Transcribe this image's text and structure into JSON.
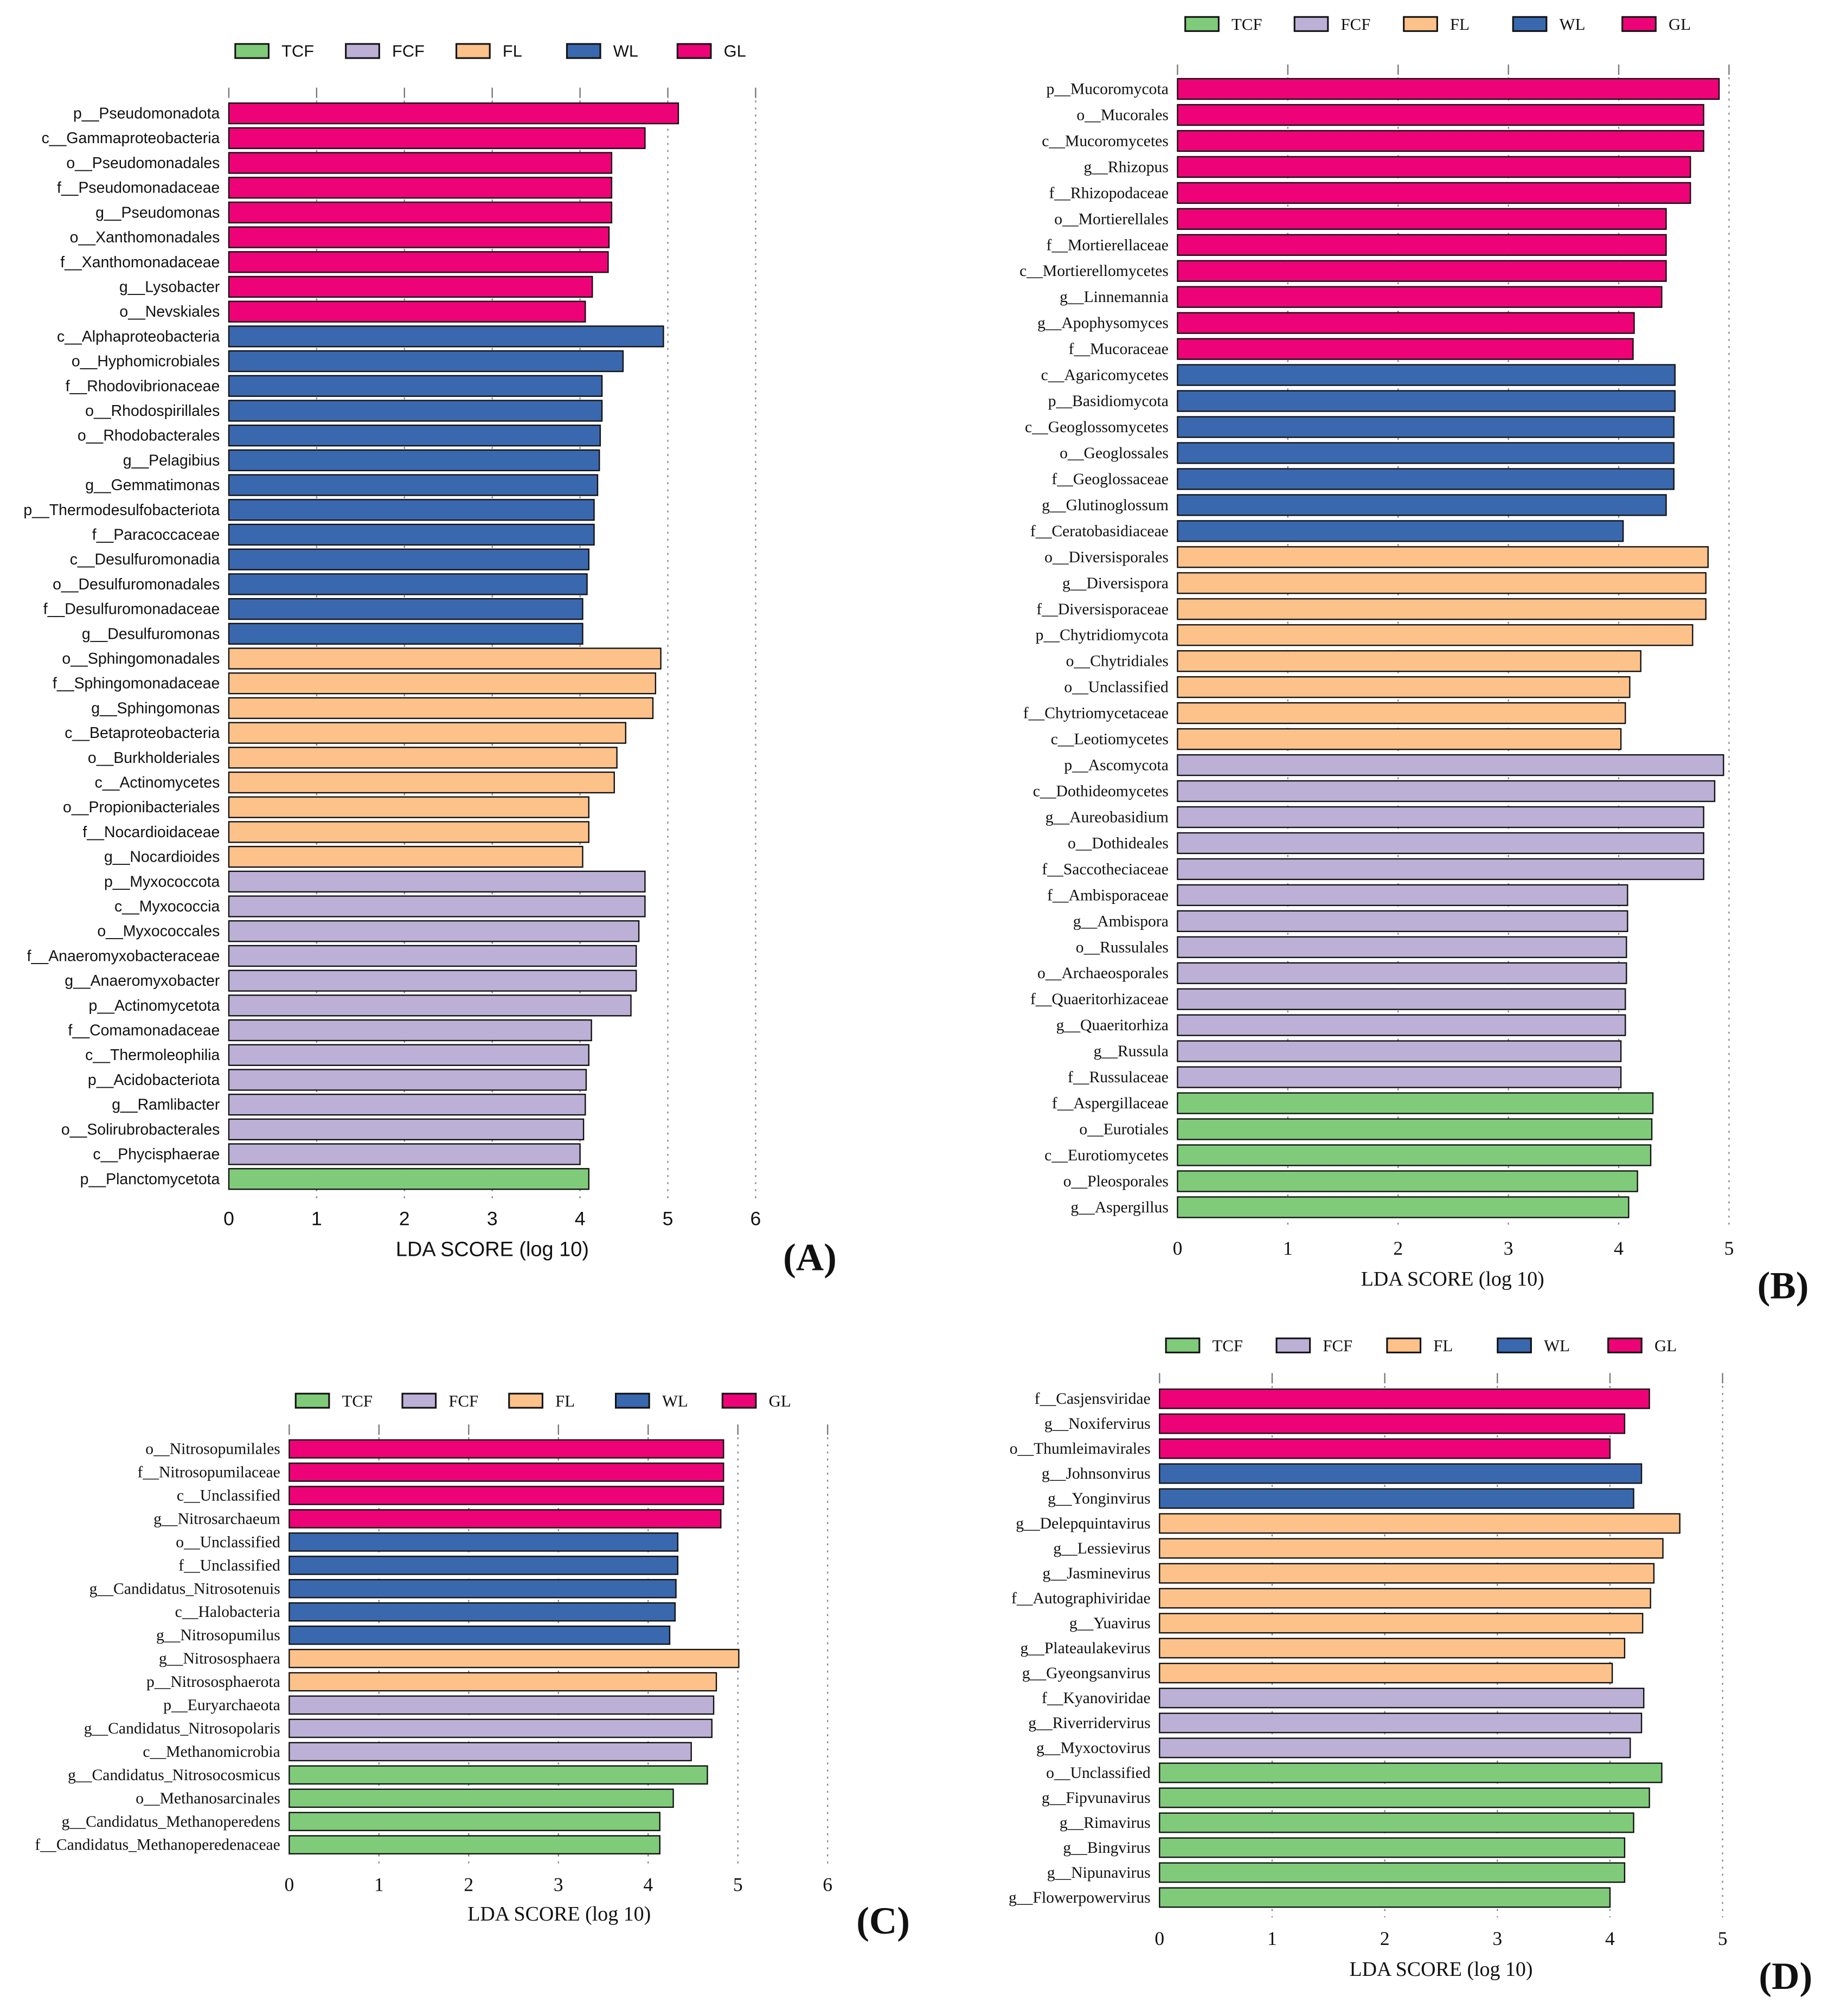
{
  "colors": {
    "TCF": "#7fcb7a",
    "FCF": "#bcb0d6",
    "FL": "#fdc18a",
    "WL": "#3a68ae",
    "GL": "#ee0277"
  },
  "chart_data": [
    {
      "type": "bar",
      "orientation": "horizontal",
      "panel_label": "(A)",
      "xlabel": "LDA SCORE (log 10)",
      "xlim": [
        0,
        6
      ],
      "ticks": [
        "0",
        "1",
        "2",
        "3",
        "4",
        "5",
        "6"
      ],
      "legend": [
        "TCF",
        "FCF",
        "FL",
        "WL",
        "GL"
      ],
      "labels": [
        "p__Pseudomonadota",
        "c__Gammaproteobacteria",
        "o__Pseudomonadales",
        "f__Pseudomonadaceae",
        "g__Pseudomonas",
        "o__Xanthomonadales",
        "f__Xanthomonadaceae",
        "g__Lysobacter",
        "o__Nevskiales",
        "c__Alphaproteobacteria",
        "o__Hyphomicrobiales",
        "f__Rhodovibrionaceae",
        "o__Rhodospirillales",
        "o__Rhodobacterales",
        "g__Pelagibius",
        "g__Gemmatimonas",
        "p__Thermodesulfobacteriota",
        "f__Paracoccaceae",
        "c__Desulfuromonadia",
        "o__Desulfuromonadales",
        "f__Desulfuromonadaceae",
        "g__Desulfuromonas",
        "o__Sphingomonadales",
        "f__Sphingomonadaceae",
        "g__Sphingomonas",
        "c__Betaproteobacteria",
        "o__Burkholderiales",
        "c__Actinomycetes",
        "o__Propionibacteriales",
        "f__Nocardioidaceae",
        "g__Nocardioides",
        "p__Myxococcota",
        "c__Myxococcia",
        "o__Myxococcales",
        "f__Anaeromyxobacteraceae",
        "g__Anaeromyxobacter",
        "p__Actinomycetota",
        "f__Comamonadaceae",
        "c__Thermoleophilia",
        "p__Acidobacteriota",
        "g__Ramlibacter",
        "o__Solirubrobacterales",
        "c__Phycisphaerae",
        "p__Planctomycetota"
      ],
      "values": [
        5.12,
        4.74,
        4.36,
        4.36,
        4.36,
        4.33,
        4.32,
        4.14,
        4.06,
        4.95,
        4.49,
        4.25,
        4.25,
        4.23,
        4.22,
        4.2,
        4.16,
        4.16,
        4.1,
        4.08,
        4.03,
        4.03,
        4.92,
        4.86,
        4.83,
        4.52,
        4.42,
        4.39,
        4.1,
        4.1,
        4.03,
        4.74,
        4.74,
        4.67,
        4.64,
        4.64,
        4.58,
        4.13,
        4.1,
        4.07,
        4.06,
        4.04,
        4.0,
        4.1
      ],
      "groups": [
        "GL",
        "GL",
        "GL",
        "GL",
        "GL",
        "GL",
        "GL",
        "GL",
        "GL",
        "WL",
        "WL",
        "WL",
        "WL",
        "WL",
        "WL",
        "WL",
        "WL",
        "WL",
        "WL",
        "WL",
        "WL",
        "WL",
        "FL",
        "FL",
        "FL",
        "FL",
        "FL",
        "FL",
        "FL",
        "FL",
        "FL",
        "FCF",
        "FCF",
        "FCF",
        "FCF",
        "FCF",
        "FCF",
        "FCF",
        "FCF",
        "FCF",
        "FCF",
        "FCF",
        "FCF",
        "TCF"
      ]
    },
    {
      "type": "bar",
      "orientation": "horizontal",
      "panel_label": "(B)",
      "xlabel": "LDA SCORE (log 10)",
      "xlim": [
        0,
        5
      ],
      "ticks": [
        "0",
        "1",
        "2",
        "3",
        "4",
        "5"
      ],
      "legend": [
        "TCF",
        "FCF",
        "FL",
        "WL",
        "GL"
      ],
      "labels": [
        "p__Mucoromycota",
        "o__Mucorales",
        "c__Mucoromycetes",
        "g__Rhizopus",
        "f__Rhizopodaceae",
        "o__Mortierellales",
        "f__Mortierellaceae",
        "c__Mortierellomycetes",
        "g__Linnemannia",
        "g__Apophysomyces",
        "f__Mucoraceae",
        "c__Agaricomycetes",
        "p__Basidiomycota",
        "c__Geoglossomycetes",
        "o__Geoglossales",
        "f__Geoglossaceae",
        "g__Glutinoglossum",
        "f__Ceratobasidiaceae",
        "o__Diversisporales",
        "g__Diversispora",
        "f__Diversisporaceae",
        "p__Chytridiomycota",
        "o__Chytridiales",
        "o__Unclassified",
        "f__Chytriomycetaceae",
        "c__Leotiomycetes",
        "p__Ascomycota",
        "c__Dothideomycetes",
        "g__Aureobasidium",
        "o__Dothideales",
        "f__Saccotheciaceae",
        "f__Ambisporaceae",
        "g__Ambispora",
        "o__Russulales",
        "o__Archaeosporales",
        "f__Quaeritorhizaceae",
        "g__Quaeritorhiza",
        "g__Russula",
        "f__Russulaceae",
        "f__Aspergillaceae",
        "o__Eurotiales",
        "c__Eurotiomycetes",
        "o__Pleosporales",
        "g__Aspergillus"
      ],
      "values": [
        4.91,
        4.77,
        4.77,
        4.65,
        4.65,
        4.43,
        4.43,
        4.43,
        4.39,
        4.14,
        4.13,
        4.51,
        4.51,
        4.5,
        4.5,
        4.5,
        4.43,
        4.04,
        4.81,
        4.79,
        4.79,
        4.67,
        4.2,
        4.1,
        4.06,
        4.02,
        4.95,
        4.87,
        4.77,
        4.77,
        4.77,
        4.08,
        4.08,
        4.07,
        4.07,
        4.06,
        4.06,
        4.02,
        4.02,
        4.31,
        4.3,
        4.29,
        4.17,
        4.09
      ],
      "groups": [
        "GL",
        "GL",
        "GL",
        "GL",
        "GL",
        "GL",
        "GL",
        "GL",
        "GL",
        "GL",
        "GL",
        "WL",
        "WL",
        "WL",
        "WL",
        "WL",
        "WL",
        "WL",
        "FL",
        "FL",
        "FL",
        "FL",
        "FL",
        "FL",
        "FL",
        "FL",
        "FCF",
        "FCF",
        "FCF",
        "FCF",
        "FCF",
        "FCF",
        "FCF",
        "FCF",
        "FCF",
        "FCF",
        "FCF",
        "FCF",
        "FCF",
        "TCF",
        "TCF",
        "TCF",
        "TCF",
        "TCF"
      ]
    },
    {
      "type": "bar",
      "orientation": "horizontal",
      "panel_label": "(C)",
      "xlabel": "LDA SCORE (log 10)",
      "xlim": [
        0,
        6
      ],
      "ticks": [
        "0",
        "1",
        "2",
        "3",
        "4",
        "5",
        "6"
      ],
      "legend": [
        "TCF",
        "FCF",
        "FL",
        "WL",
        "GL"
      ],
      "labels": [
        "o__Nitrosopumilales",
        "f__Nitrosopumilaceae",
        "c__Unclassified",
        "g__Nitrosarchaeum",
        "o__Unclassified",
        "f__Unclassified",
        "g__Candidatus_Nitrosotenuis",
        "c__Halobacteria",
        "g__Nitrosopumilus",
        "g__Nitrososphaera",
        "p__Nitrososphaerota",
        "p__Euryarchaeota",
        "g__Candidatus_Nitrosopolaris",
        "c__Methanomicrobia",
        "g__Candidatus_Nitrosocosmicus",
        "o__Methanosarcinales",
        "g__Candidatus_Methanoperedens",
        "f__Candidatus_Methanoperedenaceae"
      ],
      "values": [
        4.84,
        4.84,
        4.84,
        4.81,
        4.33,
        4.33,
        4.31,
        4.3,
        4.24,
        5.01,
        4.76,
        4.73,
        4.71,
        4.48,
        4.66,
        4.28,
        4.13,
        4.13
      ],
      "groups": [
        "GL",
        "GL",
        "GL",
        "GL",
        "WL",
        "WL",
        "WL",
        "WL",
        "WL",
        "FL",
        "FL",
        "FCF",
        "FCF",
        "FCF",
        "TCF",
        "TCF",
        "TCF",
        "TCF"
      ]
    },
    {
      "type": "bar",
      "orientation": "horizontal",
      "panel_label": "(D)",
      "xlabel": "LDA SCORE (log 10)",
      "xlim": [
        0,
        5
      ],
      "ticks": [
        "0",
        "1",
        "2",
        "3",
        "4",
        "5"
      ],
      "legend": [
        "TCF",
        "FCF",
        "FL",
        "WL",
        "GL"
      ],
      "labels": [
        "f__Casjensviridae",
        "g__Noxifervirus",
        "o__Thumleimavirales",
        "g__Johnsonvirus",
        "g__Yonginvirus",
        "g__Delepquintavirus",
        "g__Lessievirus",
        "g__Jasminevirus",
        "f__Autographiviridae",
        "g__Yuavirus",
        "g__Plateaulakevirus",
        "g__Gyeongsanvirus",
        "f__Kyanoviridae",
        "g__Riverridervirus",
        "g__Myxoctovirus",
        "o__Unclassified",
        "g__Fipvunavirus",
        "g__Rimavirus",
        "g__Bingvirus",
        "g__Nipunavirus",
        "g__Flowerpowervirus"
      ],
      "values": [
        4.35,
        4.13,
        4.0,
        4.28,
        4.21,
        4.62,
        4.47,
        4.39,
        4.36,
        4.29,
        4.13,
        4.02,
        4.3,
        4.28,
        4.18,
        4.46,
        4.35,
        4.21,
        4.13,
        4.13,
        4.0
      ],
      "groups": [
        "GL",
        "GL",
        "GL",
        "WL",
        "WL",
        "FL",
        "FL",
        "FL",
        "FL",
        "FL",
        "FL",
        "FL",
        "FCF",
        "FCF",
        "FCF",
        "TCF",
        "TCF",
        "TCF",
        "TCF",
        "TCF",
        "TCF"
      ]
    }
  ]
}
